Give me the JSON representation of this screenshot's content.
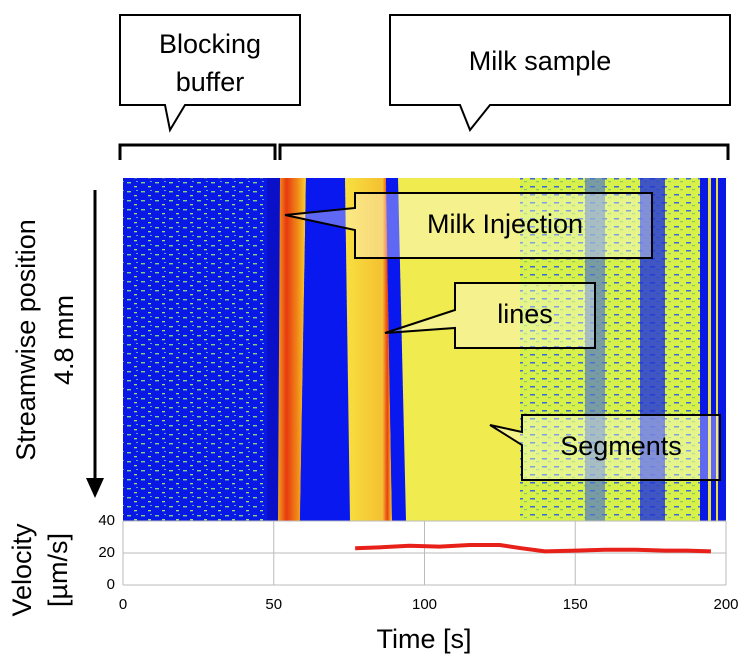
{
  "chart_data": {
    "type": "line",
    "callouts": {
      "blocking_buffer": [
        "Blocking",
        "buffer"
      ],
      "milk_sample": "Milk sample",
      "milk_injection": "Milk Injection",
      "lines": "lines",
      "segments": "Segments"
    },
    "image_ylabel": [
      "Streamwise position",
      "4.8 mm"
    ],
    "ylabel": [
      "Velocity",
      "[µm/s]"
    ],
    "xlabel": "Time  [s]",
    "x": [
      77,
      85,
      95,
      105,
      115,
      125,
      132,
      140,
      150,
      160,
      170,
      180,
      187,
      195
    ],
    "values": [
      23,
      23.5,
      24.5,
      24,
      25,
      25,
      23,
      21,
      21.5,
      22,
      22,
      21.5,
      21.5,
      21
    ],
    "color": "#e8201a",
    "xlim": [
      0,
      200
    ],
    "xticks": [
      0,
      50,
      100,
      150,
      200
    ],
    "ylim": [
      0,
      40
    ],
    "yticks": [
      0,
      20,
      40
    ],
    "grid": true
  }
}
